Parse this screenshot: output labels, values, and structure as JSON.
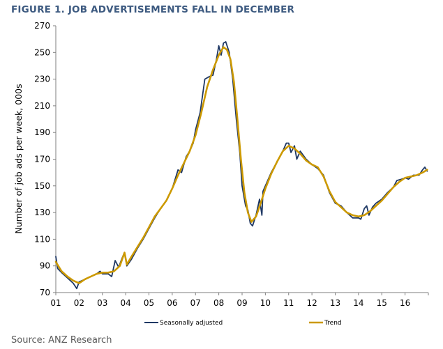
{
  "header": {
    "title": "FIGURE 1. JOB ADVERTISEMENTS FALL IN DECEMBER"
  },
  "footer": {
    "source": "Source: ANZ Research"
  },
  "colors": {
    "seasonally_adjusted": "#1f3864",
    "trend": "#cc9900",
    "title": "#3d5a80"
  },
  "chart_data": {
    "type": "line",
    "title": "FIGURE 1. JOB ADVERTISEMENTS FALL IN DECEMBER",
    "xlabel": "",
    "ylabel": "Number of job ads per week, 000s",
    "ylim": [
      70,
      270
    ],
    "yticks": [
      70,
      90,
      110,
      130,
      150,
      170,
      190,
      210,
      230,
      250,
      270
    ],
    "xlim": [
      2001,
      2017
    ],
    "xticks": [
      "01",
      "02",
      "03",
      "04",
      "05",
      "06",
      "07",
      "08",
      "09",
      "10",
      "11",
      "12",
      "13",
      "14",
      "15",
      "16"
    ],
    "grid": false,
    "legend_position": "bottom",
    "series": [
      {
        "name": "Seasonally adjusted",
        "color": "#1f3864",
        "points": [
          [
            2001.0,
            97
          ],
          [
            2001.08,
            88
          ],
          [
            2001.25,
            85
          ],
          [
            2001.5,
            81
          ],
          [
            2001.75,
            77
          ],
          [
            2001.9,
            73
          ],
          [
            2002.0,
            78
          ],
          [
            2002.25,
            80
          ],
          [
            2002.5,
            82
          ],
          [
            2002.75,
            84
          ],
          [
            2002.9,
            86
          ],
          [
            2003.0,
            84
          ],
          [
            2003.25,
            84
          ],
          [
            2003.4,
            82
          ],
          [
            2003.55,
            94
          ],
          [
            2003.7,
            89
          ],
          [
            2003.85,
            96
          ],
          [
            2003.95,
            100
          ],
          [
            2004.05,
            90
          ],
          [
            2004.25,
            95
          ],
          [
            2004.5,
            103
          ],
          [
            2004.75,
            110
          ],
          [
            2005.0,
            118
          ],
          [
            2005.25,
            126
          ],
          [
            2005.5,
            133
          ],
          [
            2005.75,
            139
          ],
          [
            2006.0,
            148
          ],
          [
            2006.25,
            162
          ],
          [
            2006.4,
            160
          ],
          [
            2006.6,
            172
          ],
          [
            2006.75,
            176
          ],
          [
            2006.9,
            182
          ],
          [
            2007.0,
            192
          ],
          [
            2007.2,
            205
          ],
          [
            2007.4,
            230
          ],
          [
            2007.6,
            232
          ],
          [
            2007.75,
            233
          ],
          [
            2007.9,
            245
          ],
          [
            2008.0,
            255
          ],
          [
            2008.1,
            248
          ],
          [
            2008.2,
            257
          ],
          [
            2008.3,
            258
          ],
          [
            2008.45,
            250
          ],
          [
            2008.6,
            230
          ],
          [
            2008.75,
            200
          ],
          [
            2008.9,
            175
          ],
          [
            2009.0,
            150
          ],
          [
            2009.15,
            135
          ],
          [
            2009.25,
            132
          ],
          [
            2009.35,
            122
          ],
          [
            2009.45,
            120
          ],
          [
            2009.6,
            128
          ],
          [
            2009.75,
            140
          ],
          [
            2009.85,
            128
          ],
          [
            2009.9,
            146
          ],
          [
            2010.0,
            150
          ],
          [
            2010.25,
            160
          ],
          [
            2010.5,
            168
          ],
          [
            2010.75,
            176
          ],
          [
            2010.9,
            182
          ],
          [
            2011.0,
            182
          ],
          [
            2011.1,
            175
          ],
          [
            2011.25,
            180
          ],
          [
            2011.35,
            170
          ],
          [
            2011.5,
            176
          ],
          [
            2011.75,
            170
          ],
          [
            2012.0,
            166
          ],
          [
            2012.25,
            163
          ],
          [
            2012.5,
            158
          ],
          [
            2012.75,
            145
          ],
          [
            2013.0,
            137
          ],
          [
            2013.25,
            135
          ],
          [
            2013.5,
            130
          ],
          [
            2013.75,
            126
          ],
          [
            2014.0,
            126
          ],
          [
            2014.1,
            125
          ],
          [
            2014.25,
            133
          ],
          [
            2014.35,
            135
          ],
          [
            2014.45,
            128
          ],
          [
            2014.6,
            134
          ],
          [
            2014.75,
            137
          ],
          [
            2015.0,
            140
          ],
          [
            2015.25,
            145
          ],
          [
            2015.5,
            149
          ],
          [
            2015.65,
            154
          ],
          [
            2015.85,
            155
          ],
          [
            2016.0,
            156
          ],
          [
            2016.15,
            155
          ],
          [
            2016.35,
            158
          ],
          [
            2016.6,
            158
          ],
          [
            2016.75,
            162
          ],
          [
            2016.85,
            164
          ],
          [
            2016.95,
            161
          ]
        ]
      },
      {
        "name": "Trend",
        "color": "#cc9900",
        "points": [
          [
            2001.0,
            93
          ],
          [
            2001.25,
            86
          ],
          [
            2001.5,
            82
          ],
          [
            2001.75,
            79
          ],
          [
            2002.0,
            77
          ],
          [
            2002.25,
            80
          ],
          [
            2002.5,
            82
          ],
          [
            2002.75,
            84
          ],
          [
            2003.0,
            85
          ],
          [
            2003.25,
            85
          ],
          [
            2003.5,
            86
          ],
          [
            2003.75,
            90
          ],
          [
            2003.95,
            100
          ],
          [
            2004.05,
            91
          ],
          [
            2004.25,
            97
          ],
          [
            2004.5,
            104
          ],
          [
            2004.75,
            111
          ],
          [
            2005.0,
            119
          ],
          [
            2005.25,
            127
          ],
          [
            2005.5,
            133
          ],
          [
            2005.75,
            139
          ],
          [
            2006.0,
            148
          ],
          [
            2006.25,
            158
          ],
          [
            2006.5,
            167
          ],
          [
            2006.75,
            176
          ],
          [
            2007.0,
            188
          ],
          [
            2007.25,
            205
          ],
          [
            2007.5,
            224
          ],
          [
            2007.75,
            237
          ],
          [
            2008.0,
            248
          ],
          [
            2008.2,
            254
          ],
          [
            2008.35,
            252
          ],
          [
            2008.5,
            245
          ],
          [
            2008.65,
            228
          ],
          [
            2008.8,
            200
          ],
          [
            2008.95,
            170
          ],
          [
            2009.1,
            145
          ],
          [
            2009.25,
            130
          ],
          [
            2009.4,
            123
          ],
          [
            2009.6,
            127
          ],
          [
            2009.8,
            137
          ],
          [
            2010.0,
            148
          ],
          [
            2010.25,
            159
          ],
          [
            2010.5,
            168
          ],
          [
            2010.75,
            176
          ],
          [
            2011.0,
            180
          ],
          [
            2011.25,
            178
          ],
          [
            2011.5,
            174
          ],
          [
            2011.75,
            169
          ],
          [
            2012.0,
            166
          ],
          [
            2012.25,
            164
          ],
          [
            2012.5,
            157
          ],
          [
            2012.75,
            146
          ],
          [
            2013.0,
            138
          ],
          [
            2013.25,
            134
          ],
          [
            2013.5,
            130
          ],
          [
            2013.75,
            128
          ],
          [
            2014.0,
            127
          ],
          [
            2014.25,
            128
          ],
          [
            2014.5,
            131
          ],
          [
            2014.75,
            135
          ],
          [
            2015.0,
            139
          ],
          [
            2015.25,
            144
          ],
          [
            2015.5,
            149
          ],
          [
            2015.75,
            153
          ],
          [
            2016.0,
            156
          ],
          [
            2016.25,
            157
          ],
          [
            2016.5,
            158
          ],
          [
            2016.75,
            160
          ],
          [
            2016.95,
            162
          ]
        ]
      }
    ]
  }
}
